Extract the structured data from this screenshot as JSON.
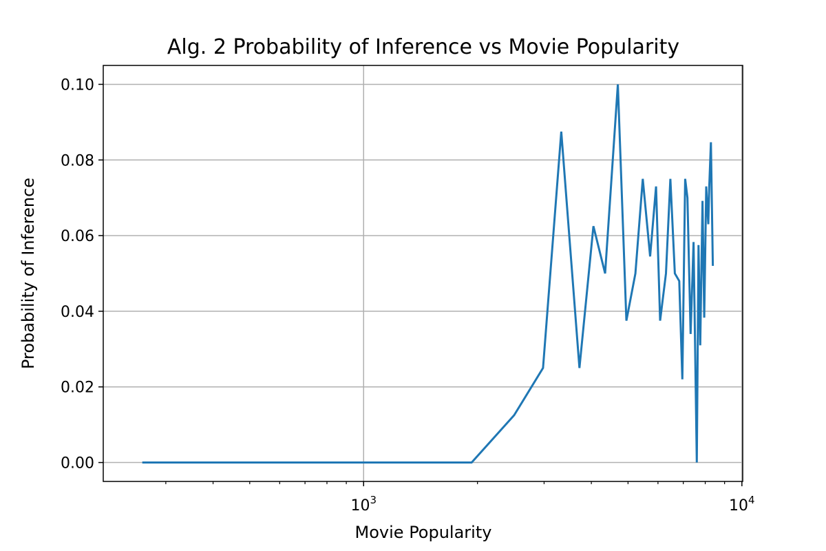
{
  "chart_data": {
    "type": "line",
    "title": "Alg. 2 Probability of Inference vs Movie Popularity",
    "xlabel": "Movie Popularity",
    "ylabel": "Probability of Inference",
    "xscale": "log",
    "xlim": [
      205,
      10050
    ],
    "ylim": [
      -0.005,
      0.105
    ],
    "grid": true,
    "xticks": [
      {
        "value": 1000,
        "base": "10",
        "exponent": "3"
      },
      {
        "value": 10000,
        "base": "10",
        "exponent": "4"
      }
    ],
    "yticks": [
      {
        "value": 0.0,
        "label": "0.00"
      },
      {
        "value": 0.02,
        "label": "0.02"
      },
      {
        "value": 0.04,
        "label": "0.04"
      },
      {
        "value": 0.06,
        "label": "0.06"
      },
      {
        "value": 0.08,
        "label": "0.08"
      },
      {
        "value": 0.1,
        "label": "0.10"
      }
    ],
    "line_color": "#1f77b4",
    "series": [
      {
        "x": [
          260,
          500,
          1000,
          1450,
          1930,
          2500,
          2980,
          3330,
          3720,
          4050,
          4350,
          4700,
          4950,
          5230,
          5470,
          5720,
          5930,
          6080,
          6300,
          6470,
          6650,
          6830,
          6960,
          7080,
          7180,
          7320,
          7450,
          7600,
          7680,
          7760,
          7870,
          7950,
          8050,
          8150,
          8200,
          8280,
          8380
        ],
        "y": [
          0.0,
          0.0,
          0.0,
          0.0,
          0.0,
          0.0125,
          0.025,
          0.0875,
          0.025,
          0.0625,
          0.05,
          0.1,
          0.0375,
          0.05,
          0.075,
          0.0545,
          0.073,
          0.0375,
          0.05,
          0.075,
          0.05,
          0.048,
          0.022,
          0.075,
          0.07,
          0.034,
          0.0583,
          0.0,
          0.0575,
          0.031,
          0.0692,
          0.0383,
          0.073,
          0.063,
          0.073,
          0.0847,
          0.052
        ]
      }
    ]
  }
}
